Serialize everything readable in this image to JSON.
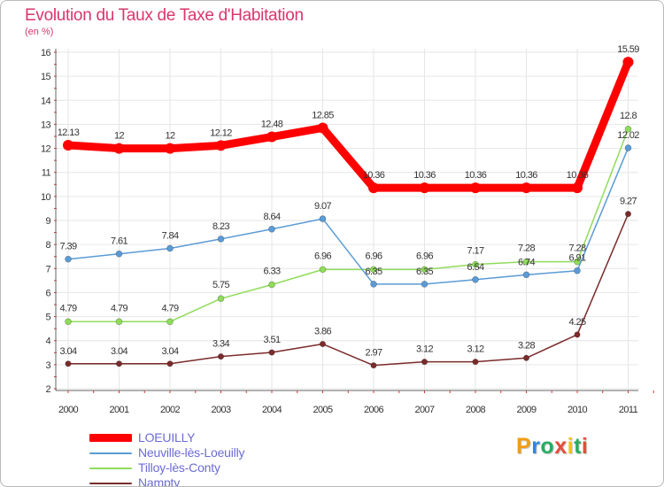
{
  "title": "Evolution du Taux de Taxe d'Habitation",
  "subtitle": "(en %)",
  "logo": {
    "letters": [
      "P",
      "r",
      "o",
      "x",
      "i",
      "t",
      "i"
    ],
    "colors": [
      "#f39c12",
      "#2e86de",
      "#27ae60",
      "#e74c3c",
      "#f1c40f",
      "#27ae60",
      "#e74c3c"
    ]
  },
  "chart_data": {
    "type": "line",
    "title": "Evolution du Taux de Taxe d'Habitation",
    "ylabel": "(en %)",
    "xlabel": "",
    "x": [
      "2000",
      "2001",
      "2002",
      "2003",
      "2004",
      "2005",
      "2006",
      "2007",
      "2008",
      "2009",
      "2010",
      "2011"
    ],
    "ylim": [
      2,
      16
    ],
    "yticks": [
      "2",
      "3",
      "4",
      "5",
      "6",
      "7",
      "8",
      "9",
      "10",
      "11",
      "12",
      "13",
      "14",
      "15",
      "16"
    ],
    "grid": true,
    "legend_position": "bottom-left",
    "series": [
      {
        "name": "LOEUILLY",
        "color": "#ff0000",
        "values": [
          12.13,
          12,
          12,
          12.12,
          12.48,
          12.85,
          10.36,
          10.36,
          10.36,
          10.36,
          10.36,
          15.59
        ],
        "labels": [
          "12.13",
          "12",
          "12",
          "12.12",
          "12.48",
          "12.85",
          "10.36",
          "10.36",
          "10.36",
          "10.36",
          "10.36",
          "15.59"
        ]
      },
      {
        "name": "Neuville-lès-Loeuilly",
        "color": "#5b9bd5",
        "values": [
          7.39,
          7.61,
          7.84,
          8.23,
          8.64,
          9.07,
          6.35,
          6.35,
          6.54,
          6.74,
          6.91,
          12.02
        ],
        "labels": [
          "7.39",
          "7.61",
          "7.84",
          "8.23",
          "8.64",
          "9.07",
          "6.35",
          "6.35",
          "6.54",
          "6.74",
          "6.91",
          "12.02"
        ]
      },
      {
        "name": "Tilloy-lès-Conty",
        "color": "#8fdc5a",
        "values": [
          4.79,
          4.79,
          4.79,
          5.75,
          6.33,
          6.96,
          6.96,
          6.96,
          7.17,
          7.28,
          7.28,
          12.8
        ],
        "labels": [
          "4.79",
          "4.79",
          "4.79",
          "5.75",
          "6.33",
          "6.96",
          "6.96",
          "6.96",
          "7.17",
          "7.28",
          "7.28",
          "12.8"
        ]
      },
      {
        "name": "Nampty",
        "color": "#7b2b2b",
        "values": [
          3.04,
          3.04,
          3.04,
          3.34,
          3.51,
          3.86,
          2.97,
          3.12,
          3.12,
          3.28,
          4.25,
          9.27
        ],
        "labels": [
          "3.04",
          "3.04",
          "3.04",
          "3.34",
          "3.51",
          "3.86",
          "2.97",
          "3.12",
          "3.12",
          "3.28",
          "4.25",
          "9.27"
        ]
      }
    ]
  }
}
